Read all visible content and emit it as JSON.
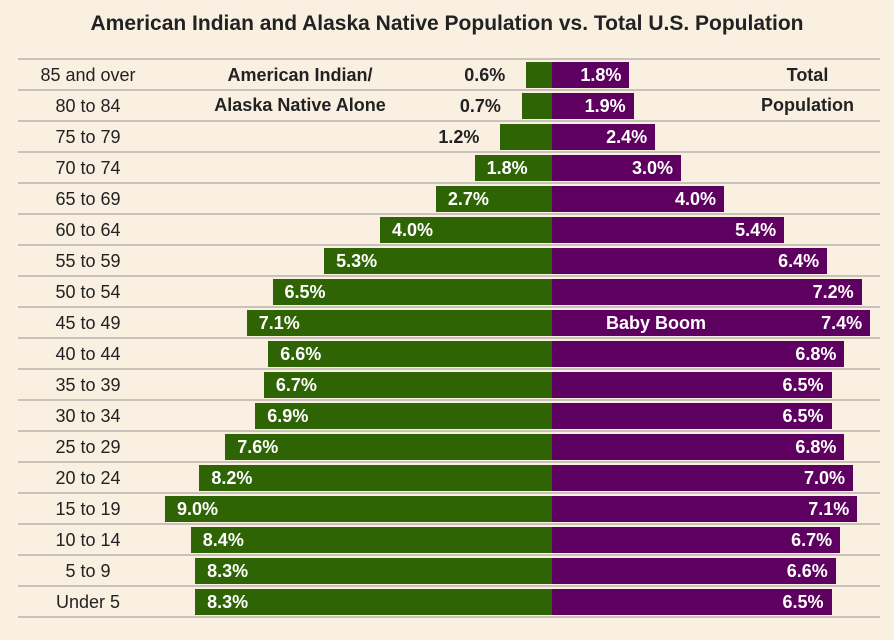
{
  "chart_data": {
    "type": "bar",
    "title": "American Indian and Alaska Native Population vs. Total U.S. Population",
    "categories": [
      "85 and over",
      "80 to 84",
      "75 to 79",
      "70 to 74",
      "65 to 69",
      "60 to 64",
      "55 to 59",
      "50 to 54",
      "45 to 49",
      "40 to 44",
      "35 to 39",
      "30 to 34",
      "25 to 29",
      "20 to 24",
      "15 to 19",
      "10 to 14",
      "5 to 9",
      "Under 5"
    ],
    "series": [
      {
        "name_lines": [
          "American Indian/",
          "Alaska Native Alone"
        ],
        "color": "#2e6404",
        "values": [
          0.6,
          0.7,
          1.2,
          1.8,
          2.7,
          4.0,
          5.3,
          6.5,
          7.1,
          6.6,
          6.7,
          6.9,
          7.6,
          8.2,
          9.0,
          8.4,
          8.3,
          8.3
        ]
      },
      {
        "name_lines": [
          "Total",
          "Population"
        ],
        "color": "#5e0060",
        "values": [
          1.8,
          1.9,
          2.4,
          3.0,
          4.0,
          5.4,
          6.4,
          7.2,
          7.4,
          6.8,
          6.5,
          6.5,
          6.8,
          7.0,
          7.1,
          6.7,
          6.6,
          6.5
        ]
      }
    ],
    "annotation": {
      "text": "Baby Boom",
      "category": "45 to 49"
    },
    "value_suffix": "%"
  }
}
